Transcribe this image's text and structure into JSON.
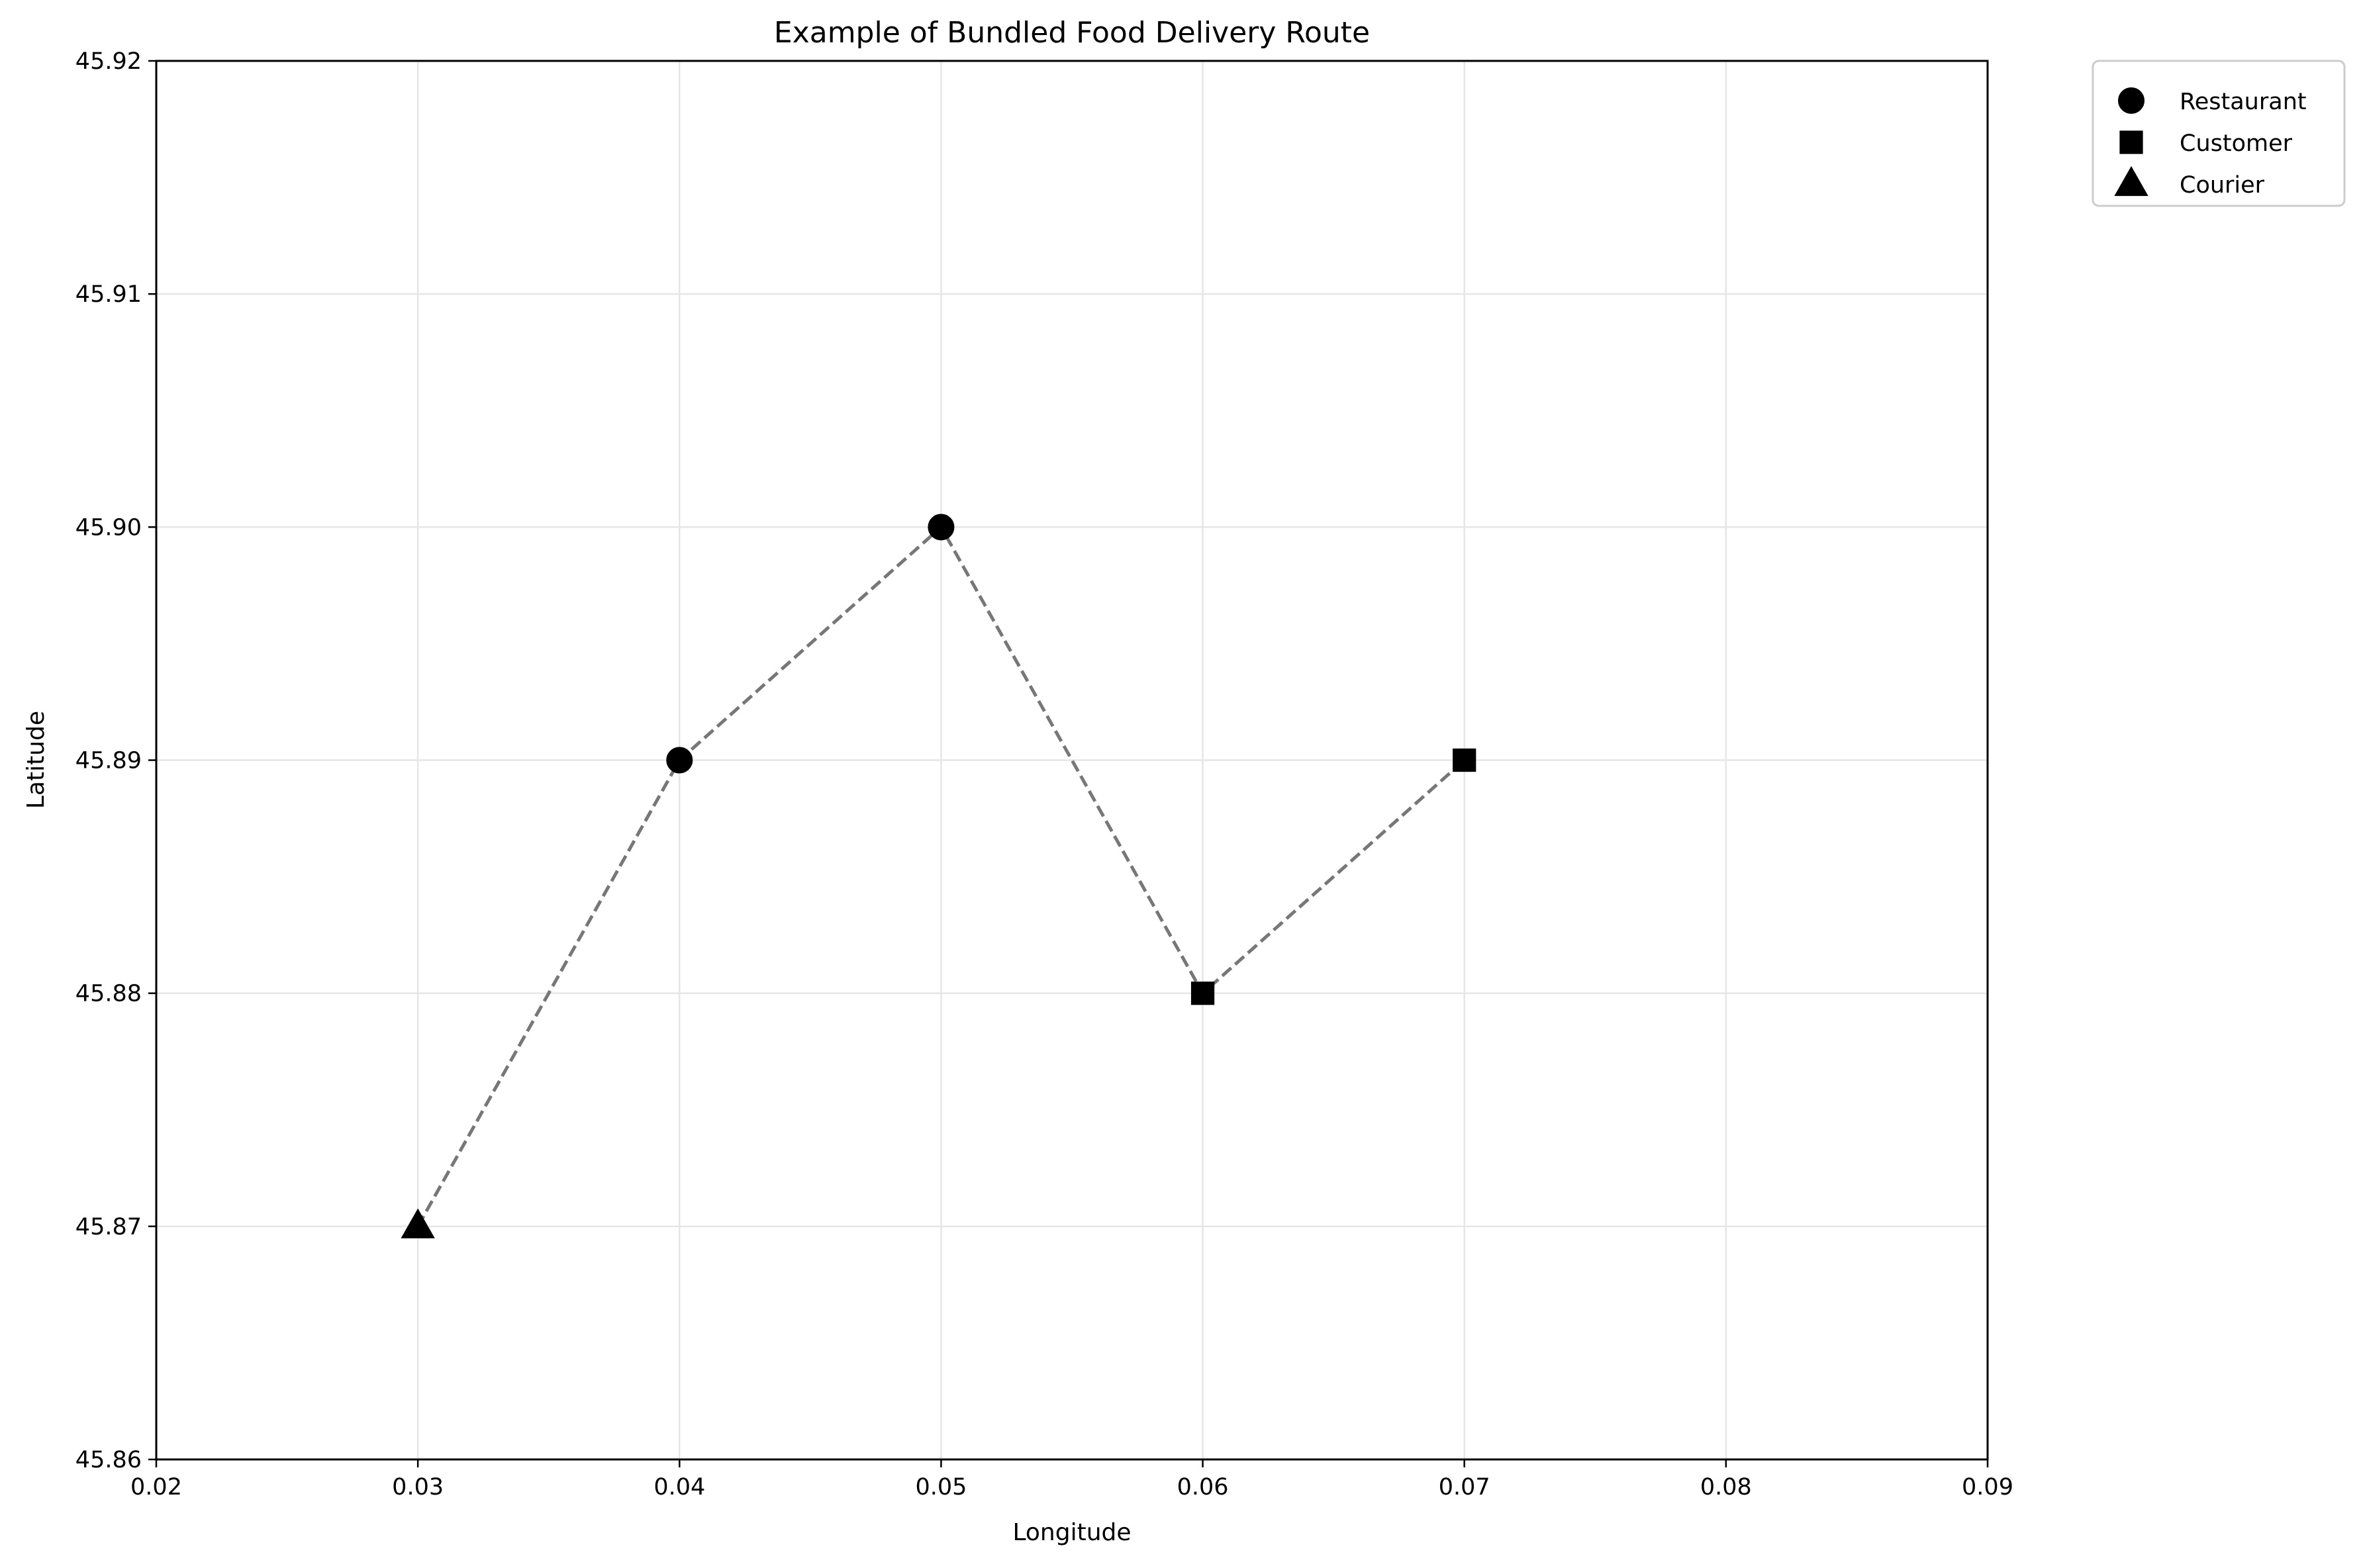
{
  "chart_data": {
    "type": "scatter",
    "title": "Example of Bundled Food Delivery Route",
    "xlabel": "Longitude",
    "ylabel": "Latitude",
    "xlim": [
      0.02,
      0.09
    ],
    "ylim": [
      45.86,
      45.92
    ],
    "xticks": [
      "0.02",
      "0.03",
      "0.04",
      "0.05",
      "0.06",
      "0.07",
      "0.08",
      "0.09"
    ],
    "yticks": [
      "45.86",
      "45.87",
      "45.88",
      "45.89",
      "45.90",
      "45.91",
      "45.92"
    ],
    "grid": true,
    "legend_position": "outside-top-right",
    "route": {
      "style": "dashed",
      "color": "#777777",
      "points": [
        [
          0.03,
          45.87
        ],
        [
          0.04,
          45.89
        ],
        [
          0.05,
          45.9
        ],
        [
          0.06,
          45.88
        ],
        [
          0.07,
          45.89
        ]
      ]
    },
    "series": [
      {
        "name": "Restaurant",
        "marker": "circle",
        "color": "#000000",
        "x": [
          0.04,
          0.05
        ],
        "y": [
          45.89,
          45.9
        ]
      },
      {
        "name": "Customer",
        "marker": "square",
        "color": "#000000",
        "x": [
          0.06,
          0.07
        ],
        "y": [
          45.88,
          45.89
        ]
      },
      {
        "name": "Courier",
        "marker": "triangle",
        "color": "#000000",
        "x": [
          0.03
        ],
        "y": [
          45.87
        ]
      }
    ]
  }
}
